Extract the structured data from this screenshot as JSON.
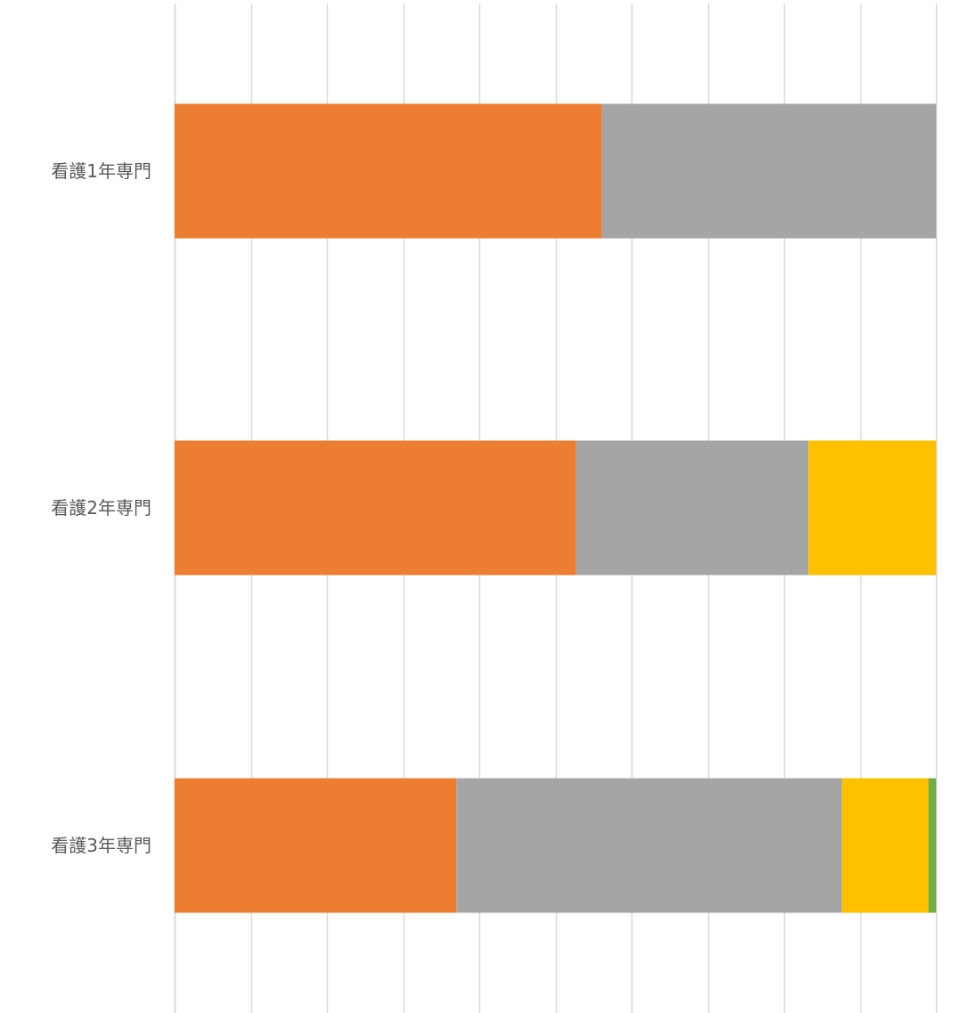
{
  "chart_data": {
    "type": "bar",
    "orientation": "horizontal",
    "stacked": "percent",
    "title": "",
    "xlabel": "",
    "ylabel": "",
    "xlim": [
      0,
      100
    ],
    "grid": true,
    "legend": "none",
    "categories": [
      "看護1年専門",
      "看護2年専門",
      "看護3年専門"
    ],
    "series": [
      {
        "color": "#ED7D31",
        "values": [
          56.1,
          52.7,
          37.0
        ]
      },
      {
        "color": "#A5A5A5",
        "values": [
          43.9,
          30.5,
          50.6
        ]
      },
      {
        "color": "#FFC000",
        "values": [
          0.0,
          16.8,
          11.4
        ]
      },
      {
        "color": "#70AD47",
        "values": [
          0.0,
          0.0,
          1.0
        ]
      }
    ]
  },
  "colors": {
    "grid": "#D9D9D9",
    "label": "#595959"
  }
}
